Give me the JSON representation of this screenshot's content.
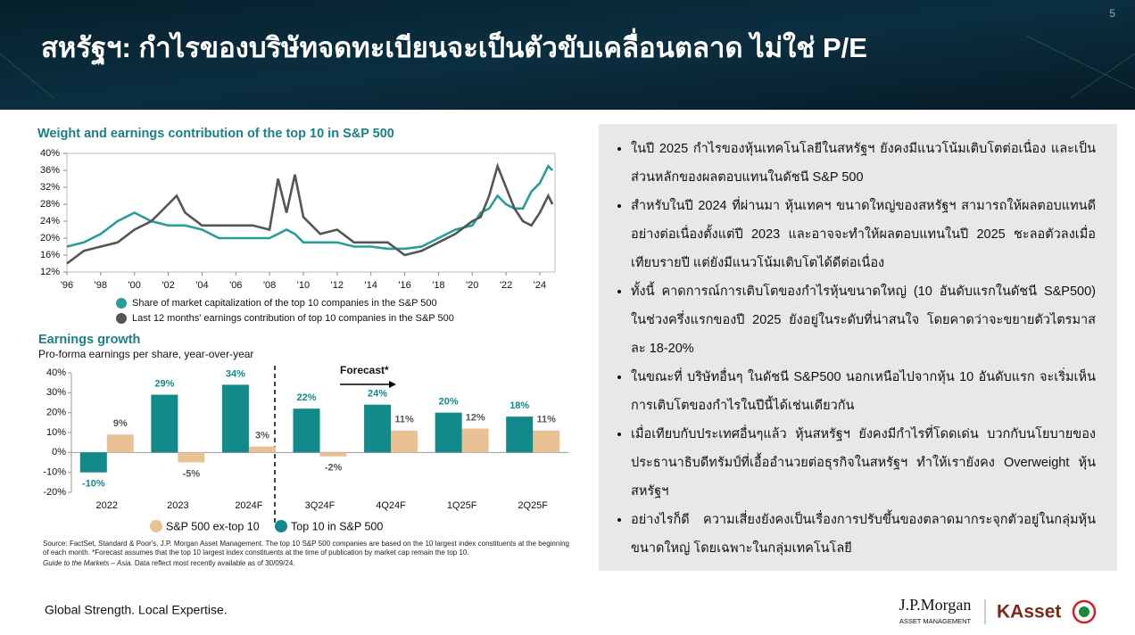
{
  "header": {
    "title": "สหรัฐฯ: กำไรของบริษัทจดทะเบียนจะเป็นตัวขับเคลื่อนตลาด ไม่ใช่ P/E",
    "page": "5"
  },
  "chart_data": [
    {
      "type": "line",
      "title": "Weight and earnings contribution of the top 10 in S&P 500",
      "x": [
        1996,
        1997,
        1998,
        1999,
        2000,
        2001,
        2002,
        2002.5,
        2003,
        2004,
        2005,
        2006,
        2007,
        2008,
        2008.5,
        2009,
        2009.5,
        2010,
        2011,
        2012,
        2013,
        2014,
        2015,
        2016,
        2017,
        2018,
        2019,
        2020,
        2020.5,
        2021,
        2021.5,
        2022,
        2022.5,
        2023,
        2023.5,
        2024,
        2024.5,
        2024.75
      ],
      "series": [
        {
          "name": "Share of market capitalization of the top 10 companies in the S&P 500",
          "color": "#2a9d96",
          "values": [
            18,
            19,
            21,
            24,
            26,
            24,
            23,
            23,
            23,
            22,
            20,
            20,
            20,
            20,
            21,
            22,
            21,
            19,
            19,
            19,
            18,
            18,
            17.5,
            17.5,
            18,
            20,
            22,
            23,
            26,
            27,
            30,
            28,
            27,
            27,
            31,
            33,
            37,
            36
          ]
        },
        {
          "name": "Last 12 months' earnings contribution of top 10 companies in the S&P 500",
          "color": "#555555",
          "values": [
            14,
            17,
            18,
            19,
            22,
            24,
            28,
            30,
            26,
            23,
            23,
            23,
            23,
            22,
            34,
            26,
            35,
            25,
            21,
            22,
            19,
            19,
            19,
            16,
            17,
            19,
            21,
            24,
            25,
            30,
            37,
            32,
            27,
            24,
            23,
            26,
            30,
            28
          ]
        }
      ],
      "xlim": [
        1996,
        2024.9
      ],
      "xticks": [
        {
          "value": 1996,
          "label": "'96"
        },
        {
          "value": 1998,
          "label": "'98"
        },
        {
          "value": 2000,
          "label": "'00"
        },
        {
          "value": 2002,
          "label": "'02"
        },
        {
          "value": 2004,
          "label": "'04"
        },
        {
          "value": 2006,
          "label": "'06"
        },
        {
          "value": 2008,
          "label": "'08"
        },
        {
          "value": 2010,
          "label": "'10"
        },
        {
          "value": 2012,
          "label": "'12"
        },
        {
          "value": 2014,
          "label": "'14"
        },
        {
          "value": 2016,
          "label": "'16"
        },
        {
          "value": 2018,
          "label": "'18"
        },
        {
          "value": 2020,
          "label": "'20"
        },
        {
          "value": 2022,
          "label": "'22"
        },
        {
          "value": 2024,
          "label": "'24"
        }
      ],
      "ylim": [
        12,
        40
      ],
      "yticks": [
        {
          "value": 12,
          "label": "12%"
        },
        {
          "value": 16,
          "label": "16%"
        },
        {
          "value": 20,
          "label": "20%"
        },
        {
          "value": 24,
          "label": "24%"
        },
        {
          "value": 28,
          "label": "28%"
        },
        {
          "value": 32,
          "label": "32%"
        },
        {
          "value": 36,
          "label": "36%"
        },
        {
          "value": 40,
          "label": "40%"
        }
      ]
    },
    {
      "type": "bar",
      "title": "Earnings growth",
      "subtitle": "Pro-forma earnings per share, year-over-year",
      "annotation": "Forecast*",
      "categories": [
        "2022",
        "2023",
        "2024F",
        "3Q24F",
        "4Q24F",
        "1Q25F",
        "2Q25F"
      ],
      "series": [
        {
          "name": "S&P 500 ex-top 10",
          "color": "#e8c295",
          "values": [
            9,
            -5,
            3,
            -2,
            11,
            12,
            11
          ],
          "value_labels": [
            "9%",
            "-5%",
            "3%",
            "-2%",
            "11%",
            "12%",
            "11%"
          ]
        },
        {
          "name": "Top 10 in S&P 500",
          "color": "#12898a",
          "values": [
            -10,
            29,
            34,
            22,
            24,
            20,
            18
          ],
          "value_labels": [
            "-10%",
            "29%",
            "34%",
            "22%",
            "24%",
            "20%",
            "18%"
          ]
        }
      ],
      "ylim": [
        -20,
        40
      ],
      "yticks": [
        {
          "value": -20,
          "label": "-20%"
        },
        {
          "value": -10,
          "label": "-10%"
        },
        {
          "value": 0,
          "label": "0%"
        },
        {
          "value": 10,
          "label": "10%"
        },
        {
          "value": 20,
          "label": "20%"
        },
        {
          "value": 30,
          "label": "30%"
        },
        {
          "value": 40,
          "label": "40%"
        }
      ]
    }
  ],
  "bullets": [
    "ในปี 2025 กำไรของหุ้นเทคโนโลยีในสหรัฐฯ ยังคงมีแนวโน้มเติบโตต่อเนื่อง และเป็นส่วนหลักของผลตอบแทนในดัชนี S&P 500",
    "สำหรับในปี 2024 ที่ผ่านมา หุ้นเทคฯ ขนาดใหญ่ของสหรัฐฯ สามารถให้ผลตอบแทนดีอย่างต่อเนื่องตั้งแต่ปี 2023 และอาจจะทำให้ผลตอบแทนในปี 2025 ชะลอตัวลงเมื่อเทียบรายปี แต่ยังมีแนวโน้มเติบโตได้ดีต่อเนื่อง",
    "ทั้งนี้ คาดการณ์การเติบโตของกำไรหุ้นขนาดใหญ่ (10 อันดับแรกในดัชนี S&P500) ในช่วงครึ่งแรกของปี 2025 ยังอยู่ในระดับที่น่าสนใจ โดยคาดว่าจะขยายตัวไตรมาสละ 18-20%",
    "ในขณะที่ บริษัทอื่นๆ ในดัชนี S&P500 นอกเหนือไปจากหุ้น 10 อันดับแรก จะเริ่มเห็นการเติบโตของกำไรในปีนี้ได้เช่นเดียวกัน",
    "เมื่อเทียบกับประเทศอื่นๆแล้ว หุ้นสหรัฐฯ ยังคงมีกำไรที่โดดเด่น บวกกับนโยบายของประธานาธิบดีทรัมป์ที่เอื้ออำนวยต่อธุรกิจในสหรัฐฯ ทำให้เรายังคง Overweight หุ้นสหรัฐฯ",
    "อย่างไรก็ดี ความเสี่ยงยังคงเป็นเรื่องการปรับขึ้นของตลาดมากระจุกตัวอยู่ในกลุ่มหุ้นขนาดใหญ่ โดยเฉพาะในกลุ่มเทคโนโลยี"
  ],
  "source": {
    "text": "Source: FactSet, Standard & Poor's, J.P. Morgan Asset Management. The top 10 S&P 500 companies are based on the 10 largest index constituents at the beginning of each month. *Forecast assumes that the top 10 largest index constituents at the time of publication by market cap remain the top 10.",
    "guide": "Guide to the Markets – Asia.",
    "date": "Data reflect most recently available as of 30/09/24."
  },
  "footer": {
    "tagline": "Global Strength. Local Expertise.",
    "brand": "J.P.Morgan",
    "brand_sub": "ASSET MANAGEMENT",
    "partner": "KAsset"
  }
}
